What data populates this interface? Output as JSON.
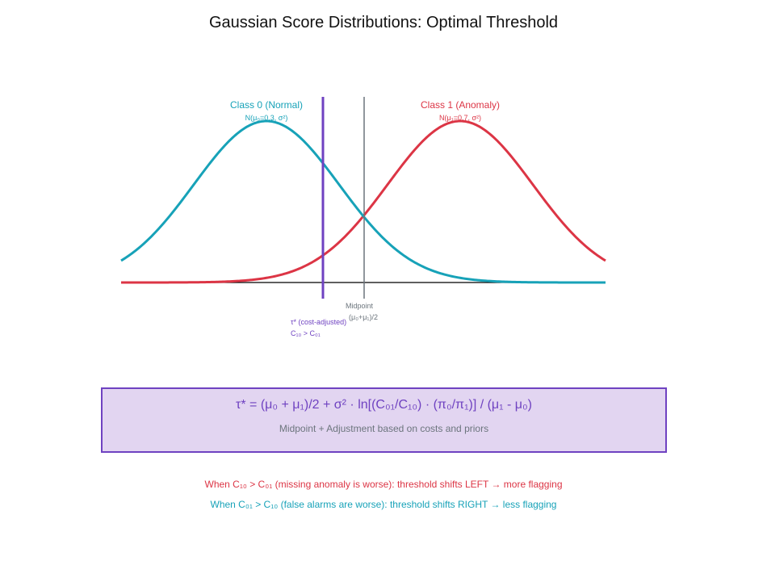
{
  "title": "Gaussian Score Distributions: Optimal Threshold",
  "colors": {
    "class0": "#17a2b8",
    "class1": "#dc3545",
    "threshold": "#6f42c1",
    "midpoint": "#6c757d",
    "axis": "#000000",
    "formula_bg": "#e2d5f1"
  },
  "class0": {
    "label": "Class 0 (Normal)",
    "params": "N(μ₀=0.3, σ²)"
  },
  "class1": {
    "label": "Class 1 (Anomaly)",
    "params": "N(μ₁=0.7, σ²)"
  },
  "midpoint": {
    "label": "Midpoint",
    "formula": "(μ₀+μ₁)/2"
  },
  "threshold": {
    "label": "τ* (cost-adjusted)",
    "condition": "C₁₀ > C₀₁"
  },
  "formula_box": {
    "formula": "τ* = (μ₀ + μ₁)/2 + σ² · ln[(C₀₁/C₁₀) · (π₀/π₁)] / (μ₁ - μ₀)",
    "caption": "Midpoint + Adjustment based on costs and priors"
  },
  "notes": {
    "left_shift": "When C₁₀ > C₀₁ (missing anomaly is worse): threshold shifts LEFT → more flagging",
    "right_shift": "When C₀₁ > C₁₀ (false alarms are worse): threshold shifts RIGHT → less flagging"
  },
  "chart_data": {
    "type": "line",
    "title": "Gaussian Score Distributions: Optimal Threshold",
    "xlabel": "",
    "ylabel": "",
    "xlim": [
      0,
      1
    ],
    "grid": false,
    "series": [
      {
        "name": "Class 0 (Normal)",
        "distribution": "normal",
        "mean": 0.3,
        "std": 0.15,
        "color": "#17a2b8"
      },
      {
        "name": "Class 1 (Anomaly)",
        "distribution": "normal",
        "mean": 0.7,
        "std": 0.15,
        "color": "#dc3545"
      }
    ],
    "vertical_lines": [
      {
        "name": "τ* (cost-adjusted)",
        "x": 0.417,
        "color": "#6f42c1"
      },
      {
        "name": "Midpoint",
        "x": 0.5,
        "color": "#6c757d"
      }
    ],
    "annotations": [
      "Class 0 (Normal)",
      "N(μ₀=0.3, σ²)",
      "Class 1 (Anomaly)",
      "N(μ₁=0.7, σ²)",
      "Midpoint",
      "(μ₀+μ₁)/2",
      "τ* (cost-adjusted)",
      "C₁₀ > C₀₁"
    ]
  }
}
